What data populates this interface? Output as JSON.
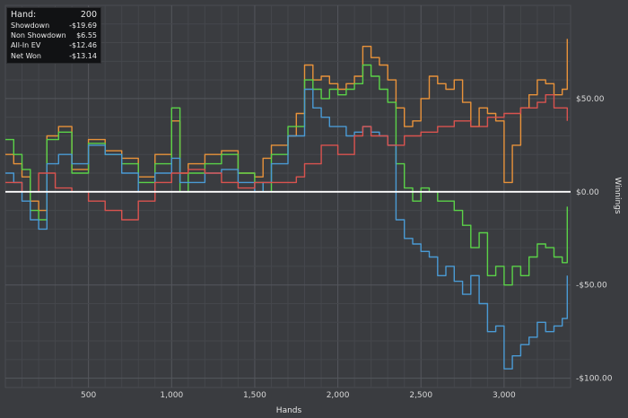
{
  "info_box": {
    "rows": [
      {
        "label": "Hand:",
        "value": "200"
      },
      {
        "label": "Showdown",
        "value": "-$19.69"
      },
      {
        "label": "Non Showdown",
        "value": "$6.55"
      },
      {
        "label": "All-In EV",
        "value": "-$12.46"
      },
      {
        "label": "Net Won",
        "value": "-$13.14"
      }
    ]
  },
  "chart_data": {
    "type": "line",
    "title": "",
    "xlabel": "Hands",
    "ylabel": "Winnings",
    "xlim": [
      0,
      3400
    ],
    "ylim": [
      -105,
      100
    ],
    "x_ticks": [
      500,
      1000,
      1500,
      2000,
      2500,
      3000
    ],
    "x_tick_labels": [
      "500",
      "1,000",
      "1,500",
      "2,000",
      "2,500",
      "3,000"
    ],
    "y_ticks": [
      50,
      0,
      -50,
      -100
    ],
    "y_tick_labels": [
      "$50.00",
      "$0.00",
      "-$50.00",
      "-$100.00"
    ],
    "grid": true,
    "zero_line": true,
    "legend": "none",
    "background": "#3a3c40",
    "series": [
      {
        "color": "#e8923a",
        "points": [
          [
            0,
            20
          ],
          [
            50,
            15
          ],
          [
            100,
            8
          ],
          [
            150,
            -5
          ],
          [
            200,
            -10
          ],
          [
            250,
            30
          ],
          [
            320,
            35
          ],
          [
            400,
            12
          ],
          [
            500,
            28
          ],
          [
            600,
            22
          ],
          [
            700,
            18
          ],
          [
            800,
            8
          ],
          [
            900,
            20
          ],
          [
            1000,
            38
          ],
          [
            1050,
            10
          ],
          [
            1100,
            15
          ],
          [
            1200,
            20
          ],
          [
            1300,
            22
          ],
          [
            1400,
            10
          ],
          [
            1500,
            8
          ],
          [
            1550,
            18
          ],
          [
            1600,
            25
          ],
          [
            1700,
            30
          ],
          [
            1750,
            42
          ],
          [
            1800,
            68
          ],
          [
            1850,
            60
          ],
          [
            1900,
            62
          ],
          [
            1950,
            58
          ],
          [
            2000,
            55
          ],
          [
            2050,
            58
          ],
          [
            2100,
            62
          ],
          [
            2150,
            78
          ],
          [
            2200,
            72
          ],
          [
            2250,
            68
          ],
          [
            2300,
            60
          ],
          [
            2350,
            45
          ],
          [
            2400,
            35
          ],
          [
            2450,
            38
          ],
          [
            2500,
            50
          ],
          [
            2550,
            62
          ],
          [
            2600,
            58
          ],
          [
            2650,
            55
          ],
          [
            2700,
            60
          ],
          [
            2750,
            48
          ],
          [
            2800,
            35
          ],
          [
            2850,
            45
          ],
          [
            2900,
            42
          ],
          [
            2950,
            38
          ],
          [
            3000,
            5
          ],
          [
            3050,
            25
          ],
          [
            3100,
            45
          ],
          [
            3150,
            52
          ],
          [
            3200,
            60
          ],
          [
            3250,
            58
          ],
          [
            3300,
            52
          ],
          [
            3350,
            55
          ],
          [
            3380,
            82
          ]
        ]
      },
      {
        "color": "#5ad148",
        "points": [
          [
            0,
            28
          ],
          [
            50,
            20
          ],
          [
            100,
            12
          ],
          [
            150,
            -10
          ],
          [
            200,
            -15
          ],
          [
            250,
            28
          ],
          [
            320,
            32
          ],
          [
            400,
            10
          ],
          [
            500,
            26
          ],
          [
            600,
            20
          ],
          [
            700,
            15
          ],
          [
            800,
            5
          ],
          [
            900,
            15
          ],
          [
            1000,
            45
          ],
          [
            1050,
            0
          ],
          [
            1100,
            10
          ],
          [
            1200,
            15
          ],
          [
            1300,
            20
          ],
          [
            1400,
            10
          ],
          [
            1500,
            5
          ],
          [
            1550,
            0
          ],
          [
            1600,
            20
          ],
          [
            1700,
            35
          ],
          [
            1800,
            60
          ],
          [
            1850,
            55
          ],
          [
            1900,
            50
          ],
          [
            1950,
            55
          ],
          [
            2000,
            52
          ],
          [
            2050,
            55
          ],
          [
            2100,
            58
          ],
          [
            2150,
            68
          ],
          [
            2200,
            62
          ],
          [
            2250,
            55
          ],
          [
            2300,
            48
          ],
          [
            2350,
            15
          ],
          [
            2400,
            2
          ],
          [
            2450,
            -5
          ],
          [
            2500,
            2
          ],
          [
            2550,
            0
          ],
          [
            2600,
            -5
          ],
          [
            2650,
            -5
          ],
          [
            2700,
            -10
          ],
          [
            2750,
            -18
          ],
          [
            2800,
            -30
          ],
          [
            2850,
            -22
          ],
          [
            2900,
            -45
          ],
          [
            2950,
            -40
          ],
          [
            3000,
            -50
          ],
          [
            3050,
            -40
          ],
          [
            3100,
            -45
          ],
          [
            3150,
            -35
          ],
          [
            3200,
            -28
          ],
          [
            3250,
            -30
          ],
          [
            3300,
            -35
          ],
          [
            3350,
            -38
          ],
          [
            3380,
            -8
          ]
        ]
      },
      {
        "color": "#4a9ad4",
        "points": [
          [
            0,
            10
          ],
          [
            50,
            5
          ],
          [
            100,
            -5
          ],
          [
            150,
            -15
          ],
          [
            200,
            -20
          ],
          [
            250,
            15
          ],
          [
            320,
            20
          ],
          [
            400,
            15
          ],
          [
            500,
            25
          ],
          [
            600,
            20
          ],
          [
            700,
            10
          ],
          [
            800,
            0
          ],
          [
            900,
            10
          ],
          [
            1000,
            18
          ],
          [
            1050,
            5
          ],
          [
            1100,
            5
          ],
          [
            1200,
            10
          ],
          [
            1300,
            12
          ],
          [
            1400,
            5
          ],
          [
            1500,
            0
          ],
          [
            1550,
            5
          ],
          [
            1600,
            15
          ],
          [
            1700,
            30
          ],
          [
            1800,
            55
          ],
          [
            1850,
            45
          ],
          [
            1900,
            40
          ],
          [
            1950,
            35
          ],
          [
            2000,
            35
          ],
          [
            2050,
            30
          ],
          [
            2100,
            32
          ],
          [
            2150,
            35
          ],
          [
            2200,
            32
          ],
          [
            2250,
            30
          ],
          [
            2300,
            25
          ],
          [
            2350,
            -15
          ],
          [
            2400,
            -25
          ],
          [
            2450,
            -28
          ],
          [
            2500,
            -32
          ],
          [
            2550,
            -35
          ],
          [
            2600,
            -45
          ],
          [
            2650,
            -40
          ],
          [
            2700,
            -48
          ],
          [
            2750,
            -55
          ],
          [
            2800,
            -45
          ],
          [
            2850,
            -60
          ],
          [
            2900,
            -75
          ],
          [
            2950,
            -72
          ],
          [
            3000,
            -95
          ],
          [
            3050,
            -88
          ],
          [
            3100,
            -82
          ],
          [
            3150,
            -78
          ],
          [
            3200,
            -70
          ],
          [
            3250,
            -75
          ],
          [
            3300,
            -72
          ],
          [
            3350,
            -68
          ],
          [
            3380,
            -45
          ]
        ]
      },
      {
        "color": "#d9534f",
        "points": [
          [
            0,
            5
          ],
          [
            100,
            0
          ],
          [
            200,
            10
          ],
          [
            300,
            2
          ],
          [
            400,
            0
          ],
          [
            500,
            -5
          ],
          [
            600,
            -10
          ],
          [
            700,
            -15
          ],
          [
            800,
            -5
          ],
          [
            900,
            5
          ],
          [
            1000,
            10
          ],
          [
            1100,
            12
          ],
          [
            1200,
            10
          ],
          [
            1300,
            5
          ],
          [
            1400,
            2
          ],
          [
            1500,
            5
          ],
          [
            1600,
            5
          ],
          [
            1700,
            5
          ],
          [
            1750,
            8
          ],
          [
            1800,
            15
          ],
          [
            1900,
            25
          ],
          [
            2000,
            20
          ],
          [
            2100,
            30
          ],
          [
            2150,
            35
          ],
          [
            2200,
            30
          ],
          [
            2300,
            25
          ],
          [
            2400,
            30
          ],
          [
            2500,
            32
          ],
          [
            2600,
            35
          ],
          [
            2700,
            38
          ],
          [
            2800,
            35
          ],
          [
            2900,
            40
          ],
          [
            3000,
            42
          ],
          [
            3100,
            45
          ],
          [
            3200,
            48
          ],
          [
            3250,
            52
          ],
          [
            3300,
            45
          ],
          [
            3380,
            38
          ]
        ]
      }
    ]
  }
}
